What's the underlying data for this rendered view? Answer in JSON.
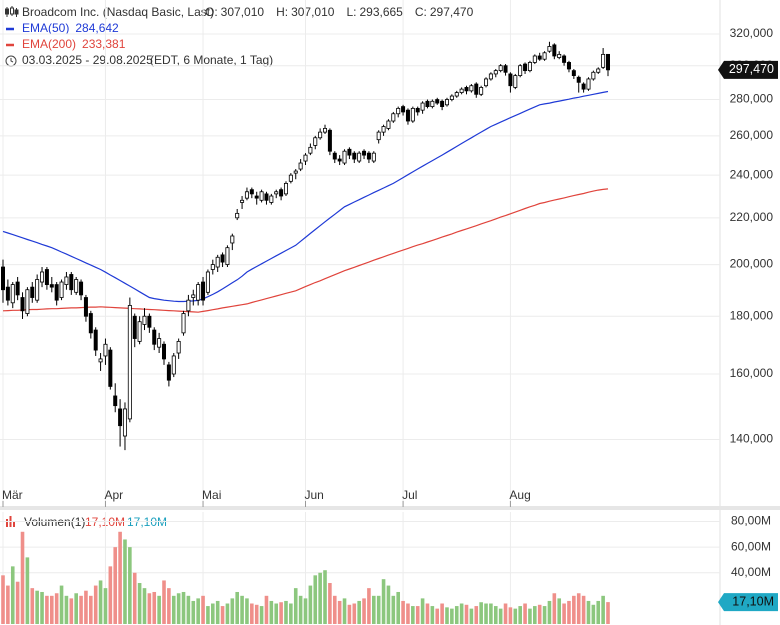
{
  "chart_data": {
    "type": "candlestick",
    "title": "Broadcom Inc. (Nasdaq Basic, Last)",
    "ohlc_header": [
      {
        "label": "O:",
        "value_label": "307,010"
      },
      {
        "label": "H:",
        "value_label": "307,010"
      },
      {
        "label": "L:",
        "value_label": "293,665"
      },
      {
        "label": "C:",
        "value_label": "297,470"
      }
    ],
    "date_range": "03.03.2025 - 29.08.2025",
    "range_note": "(EDT, 6 Monate, 1 Tag)",
    "last_price_label": "297,470",
    "log_scale": true,
    "grid": true,
    "up_color": "#ffffff",
    "down_color": "#000000",
    "categories": [
      "Mär",
      null,
      null,
      null,
      null,
      null,
      null,
      null,
      null,
      null,
      null,
      null,
      null,
      null,
      null,
      null,
      null,
      null,
      null,
      null,
      null,
      "Apr",
      null,
      null,
      null,
      null,
      null,
      null,
      null,
      null,
      null,
      null,
      null,
      null,
      null,
      null,
      null,
      null,
      null,
      null,
      null,
      "Mai",
      null,
      null,
      null,
      null,
      null,
      null,
      null,
      null,
      null,
      null,
      null,
      null,
      null,
      null,
      null,
      null,
      null,
      null,
      null,
      null,
      "Jun",
      null,
      null,
      null,
      null,
      null,
      null,
      null,
      null,
      null,
      null,
      null,
      null,
      null,
      null,
      null,
      null,
      null,
      null,
      null,
      "Jul",
      null,
      null,
      null,
      null,
      null,
      null,
      null,
      null,
      null,
      null,
      null,
      null,
      null,
      null,
      null,
      null,
      null,
      null,
      null,
      null,
      null,
      "Aug",
      null,
      null,
      null,
      null,
      null,
      null,
      null,
      null,
      null,
      null,
      null,
      null,
      null,
      null,
      null,
      null,
      null,
      null,
      null,
      null
    ],
    "open": [
      199000,
      191000,
      185000,
      193000,
      187000,
      181000,
      191000,
      186000,
      193000,
      198000,
      192000,
      192000,
      187000,
      192000,
      196000,
      189000,
      193000,
      187000,
      181000,
      175000,
      164000,
      166000,
      168000,
      153000,
      149000,
      141000,
      146000,
      180000,
      171000,
      177000,
      180000,
      175000,
      169000,
      170000,
      163000,
      160000,
      167000,
      174000,
      182000,
      187000,
      186000,
      193000,
      189000,
      198000,
      199000,
      204000,
      200000,
      209000,
      220000,
      227000,
      229000,
      233000,
      230000,
      228000,
      231000,
      227000,
      231000,
      233000,
      231000,
      237000,
      241000,
      243000,
      247000,
      251000,
      255000,
      259000,
      262000,
      263000,
      251000,
      248000,
      246000,
      253000,
      251000,
      247000,
      252000,
      251000,
      247000,
      258000,
      262000,
      264000,
      268000,
      272000,
      276000,
      274000,
      268000,
      275000,
      274000,
      279000,
      276000,
      280000,
      279000,
      277000,
      280000,
      282000,
      284000,
      287000,
      285000,
      289000,
      283000,
      288000,
      292000,
      295000,
      297000,
      300000,
      295000,
      287000,
      294000,
      301000,
      297000,
      302000,
      306000,
      304000,
      309000,
      313000,
      305000,
      306000,
      302000,
      297000,
      293000,
      289000,
      286000,
      292000,
      296000,
      299000,
      307010
    ],
    "high": [
      202000,
      194000,
      193000,
      195000,
      189000,
      191000,
      193000,
      196000,
      199000,
      199000,
      195000,
      193000,
      194000,
      197000,
      197000,
      195000,
      194000,
      188000,
      182000,
      176000,
      167000,
      172000,
      169000,
      157000,
      152000,
      151000,
      187000,
      181000,
      180000,
      183000,
      181000,
      176000,
      174000,
      171000,
      164000,
      167000,
      172000,
      182000,
      188000,
      190000,
      193000,
      195000,
      198000,
      202000,
      204000,
      205000,
      208000,
      213000,
      224000,
      230000,
      234000,
      234000,
      232000,
      233000,
      232000,
      231000,
      233000,
      234000,
      237000,
      241000,
      243000,
      248000,
      251000,
      256000,
      260000,
      264000,
      266000,
      264000,
      252000,
      250000,
      253000,
      254000,
      252000,
      252000,
      253000,
      252000,
      252000,
      263000,
      266000,
      269000,
      273000,
      276000,
      277000,
      275000,
      276000,
      276000,
      279000,
      280000,
      280000,
      281000,
      280000,
      281000,
      283000,
      285000,
      287000,
      288000,
      289000,
      290000,
      288000,
      293000,
      296000,
      298000,
      301000,
      301000,
      296000,
      295000,
      301000,
      302000,
      303000,
      307000,
      308000,
      309000,
      315000,
      314000,
      309000,
      307000,
      303000,
      298000,
      294000,
      290000,
      293000,
      297000,
      299000,
      311000,
      307010
    ],
    "low": [
      185000,
      184000,
      183000,
      186000,
      179000,
      180000,
      185000,
      185000,
      191000,
      190000,
      189000,
      184000,
      186000,
      190000,
      188000,
      188000,
      186000,
      178000,
      172000,
      166000,
      161000,
      163000,
      155000,
      148000,
      138000,
      137000,
      145000,
      169000,
      170000,
      175000,
      174000,
      168000,
      167000,
      163000,
      156000,
      159000,
      165000,
      173000,
      180000,
      184000,
      184000,
      184000,
      188000,
      196000,
      197000,
      199000,
      199000,
      206000,
      219000,
      224000,
      228000,
      229000,
      226000,
      227000,
      226000,
      226000,
      229000,
      228000,
      230000,
      236000,
      238000,
      242000,
      245000,
      250000,
      253000,
      258000,
      261000,
      250000,
      246000,
      245000,
      245000,
      248000,
      246000,
      246000,
      248000,
      246000,
      246000,
      256000,
      260000,
      263000,
      267000,
      270000,
      271000,
      266000,
      267000,
      271000,
      272000,
      275000,
      275000,
      277000,
      274000,
      276000,
      279000,
      281000,
      283000,
      283000,
      284000,
      281000,
      282000,
      287000,
      291000,
      293000,
      296000,
      294000,
      284000,
      286000,
      293000,
      295000,
      296000,
      301000,
      303000,
      303000,
      308000,
      304000,
      304000,
      300000,
      296000,
      292000,
      284000,
      284000,
      285000,
      291000,
      295000,
      298000,
      293665
    ],
    "close": [
      190000,
      186000,
      192000,
      188000,
      182000,
      190000,
      187000,
      194000,
      197000,
      192000,
      191000,
      186000,
      193000,
      195000,
      190000,
      194000,
      188000,
      180000,
      174000,
      168000,
      165000,
      170000,
      156000,
      150000,
      144000,
      149000,
      184000,
      172000,
      178000,
      180000,
      176000,
      170000,
      172000,
      165000,
      158000,
      166000,
      171000,
      181000,
      186000,
      188000,
      192000,
      186000,
      197000,
      200000,
      203000,
      201000,
      207000,
      212000,
      222000,
      228000,
      232000,
      231000,
      229000,
      232000,
      228000,
      230000,
      232000,
      230000,
      236000,
      240000,
      242000,
      246000,
      250000,
      254000,
      259000,
      262000,
      264000,
      252000,
      248000,
      247000,
      252000,
      250000,
      248000,
      251000,
      250000,
      248000,
      251000,
      262000,
      265000,
      268000,
      272000,
      275000,
      273000,
      268000,
      275000,
      273000,
      278000,
      276000,
      279000,
      278000,
      276000,
      280000,
      282000,
      284000,
      286000,
      285000,
      288000,
      283000,
      287000,
      292000,
      295000,
      297000,
      300000,
      296000,
      288000,
      294000,
      300000,
      297000,
      302000,
      306000,
      304000,
      308000,
      312000,
      306000,
      307000,
      302000,
      298000,
      294000,
      290000,
      286000,
      292000,
      296000,
      298000,
      307000,
      297470
    ],
    "series": [
      {
        "name": "EMA(50)",
        "color": "#1f3ad6",
        "last_value_label": "284,642",
        "values": [
          214000,
          213300,
          212600,
          211900,
          211200,
          210500,
          209800,
          209100,
          208400,
          207700,
          207000,
          206100,
          205200,
          204300,
          203400,
          202500,
          201600,
          200700,
          199800,
          198900,
          198000,
          196900,
          195800,
          194700,
          193600,
          192500,
          191400,
          190300,
          189200,
          188100,
          187000,
          186600,
          186300,
          186000,
          185800,
          185600,
          185500,
          185500,
          185600,
          185700,
          185900,
          186500,
          187300,
          188200,
          189200,
          190300,
          191500,
          192700,
          193900,
          195300,
          197000,
          198100,
          199200,
          200300,
          201400,
          202500,
          203600,
          204700,
          205800,
          206900,
          208000,
          209700,
          211400,
          213100,
          214800,
          216500,
          218200,
          219900,
          221600,
          223300,
          225000,
          226100,
          227200,
          228300,
          229400,
          230500,
          231600,
          232700,
          233800,
          234900,
          236000,
          237400,
          238800,
          240200,
          241600,
          243000,
          244400,
          245800,
          247200,
          248600,
          250000,
          251500,
          253000,
          254500,
          256000,
          257500,
          259000,
          260500,
          262000,
          263500,
          265000,
          266200,
          267400,
          268600,
          269800,
          271000,
          272200,
          273400,
          274600,
          275800,
          277000,
          277500,
          278000,
          278600,
          279100,
          279700,
          280200,
          280800,
          281300,
          281900,
          282400,
          283000,
          283500,
          284100,
          284642
        ]
      },
      {
        "name": "EMA(200)",
        "color": "#e0443c",
        "last_value_label": "233,381",
        "values": [
          182000,
          182100,
          182200,
          182200,
          182300,
          182400,
          182500,
          182500,
          182600,
          182700,
          182800,
          182800,
          182900,
          183000,
          183100,
          183100,
          183200,
          183300,
          183400,
          183400,
          183500,
          183400,
          183300,
          183200,
          183100,
          183000,
          182900,
          182800,
          182700,
          182600,
          182500,
          182400,
          182300,
          182200,
          182100,
          182000,
          181900,
          181800,
          181700,
          181600,
          181500,
          181800,
          182100,
          182400,
          182700,
          183100,
          183400,
          183700,
          184000,
          184300,
          184600,
          185100,
          185600,
          186100,
          186600,
          187100,
          187600,
          188100,
          188600,
          189100,
          189600,
          190400,
          191200,
          192000,
          192800,
          193500,
          194300,
          195100,
          195900,
          196700,
          197500,
          198200,
          198900,
          199600,
          200300,
          201000,
          201800,
          202500,
          203200,
          203900,
          204600,
          205300,
          206000,
          206700,
          207400,
          208100,
          208700,
          209400,
          210100,
          210800,
          211500,
          212200,
          212900,
          213700,
          214400,
          215100,
          215800,
          216500,
          217300,
          218000,
          218700,
          219500,
          220300,
          221000,
          221800,
          222600,
          223400,
          224200,
          225000,
          225700,
          226500,
          227000,
          227600,
          228100,
          228600,
          229100,
          229700,
          230200,
          230700,
          231200,
          231800,
          232300,
          232800,
          233100,
          233381
        ]
      }
    ],
    "ylim": [
      122000,
      343000
    ],
    "yticks": [
      {
        "value": 140000,
        "label": "140,000"
      },
      {
        "value": 160000,
        "label": "160,000"
      },
      {
        "value": 180000,
        "label": "180,000"
      },
      {
        "value": 200000,
        "label": "200,000"
      },
      {
        "value": 220000,
        "label": "220,000"
      },
      {
        "value": 240000,
        "label": "240,000"
      },
      {
        "value": 260000,
        "label": "260,000"
      },
      {
        "value": 280000,
        "label": "280,000"
      },
      {
        "value": 300000,
        "label": "300,000"
      },
      {
        "value": 320000,
        "label": "320,000"
      }
    ],
    "volume": {
      "name": "Volumen(1)",
      "legend_labels": [
        "17,10M",
        "17,10M"
      ],
      "legend_colors": [
        "#e0443c",
        "#1a9fbd"
      ],
      "tag_label": "17,10M",
      "tag_color": "#1fa8c4",
      "up_color": "#8cc77e",
      "down_color": "#ef8f8a",
      "ylim": [
        0,
        89
      ],
      "yticks": [
        {
          "value": 40,
          "label": "40,00M"
        },
        {
          "value": 60,
          "label": "60,00M"
        },
        {
          "value": 80,
          "label": "80,00M"
        }
      ],
      "values": [
        38,
        30,
        45,
        33,
        72,
        52,
        28,
        26,
        25,
        22,
        22,
        24,
        30,
        22,
        20,
        24,
        22,
        26,
        22,
        30,
        34,
        28,
        45,
        60,
        72,
        66,
        60,
        40,
        32,
        28,
        24,
        25,
        22,
        34,
        28,
        22,
        24,
        25,
        22,
        18,
        20,
        22,
        14,
        16,
        18,
        14,
        16,
        20,
        25,
        22,
        20,
        16,
        15,
        14,
        22,
        18,
        16,
        17,
        18,
        16,
        28,
        22,
        20,
        30,
        38,
        40,
        42,
        32,
        22,
        18,
        20,
        15,
        16,
        18,
        20,
        28,
        22,
        22,
        35,
        30,
        22,
        25,
        18,
        16,
        14,
        14,
        20,
        16,
        14,
        12,
        16,
        13,
        12,
        14,
        16,
        15,
        12,
        14,
        17,
        16,
        16,
        14,
        12,
        16,
        13,
        12,
        14,
        16,
        12,
        14,
        15,
        14,
        18,
        24,
        20,
        16,
        18,
        22,
        24,
        22,
        18,
        15,
        18,
        22,
        17.1
      ]
    }
  }
}
